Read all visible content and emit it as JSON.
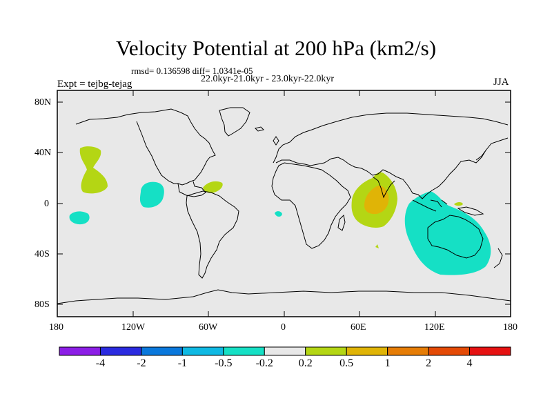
{
  "title": "Velocity Potential at 200 hPa (km2/s)",
  "stats": "rmsd= 0.136598 diff= 1.0341e-05",
  "period": "22.0kyr-21.0kyr - 23.0kyr-22.0kyr",
  "experiment": "Expt = tejbg-tejag",
  "season": "JJA",
  "axes": {
    "lat_ticks": [
      "80N",
      "40N",
      "0",
      "40S",
      "80S"
    ],
    "lon_ticks": [
      "180",
      "120W",
      "60W",
      "0",
      "60E",
      "120E",
      "180"
    ]
  },
  "colorbar": {
    "labels": [
      "-4",
      "-2",
      "-1",
      "-0.5",
      "-0.2",
      "0.2",
      "0.5",
      "1",
      "2",
      "4"
    ],
    "colors": [
      "#8c1ee6",
      "#2b2be0",
      "#0a78dc",
      "#0fb9e3",
      "#15e0c5",
      "#e8e8e8",
      "#b4d614",
      "#e0b406",
      "#e67d06",
      "#e44a06",
      "#e61212"
    ]
  },
  "colors": {
    "ocean": "#e8e8e8",
    "coast": "#000000",
    "pos_02": "#b4d614",
    "pos_05": "#e0b406",
    "neg_02": "#15e0c5"
  }
}
